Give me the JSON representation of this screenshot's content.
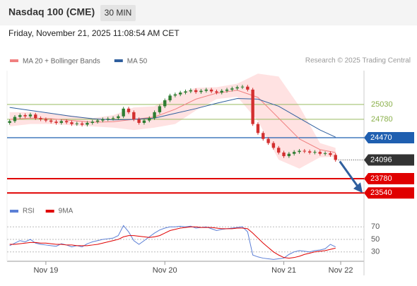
{
  "chart_data": [
    {
      "type": "candlestick",
      "title": "Nasdaq 100 (CME)",
      "timeframe": "30 MIN",
      "timestamp": "Friday, November 21, 2025 11:08:54 AM CET",
      "credit": "Research © 2025 Trading Central",
      "up_color": "#2e7d32",
      "down_color": "#d32f2f",
      "xlim": [
        -0.5,
        68.5
      ],
      "ylim": [
        23400,
        25600
      ],
      "open": [
        24720,
        24750,
        24820,
        24850,
        24830,
        24860,
        24800,
        24780,
        24760,
        24740,
        24720,
        24750,
        24730,
        24700,
        24710,
        24690,
        24720,
        24740,
        24760,
        24780,
        24790,
        24800,
        24830,
        24960,
        24900,
        24780,
        24720,
        24760,
        24800,
        24900,
        25000,
        25100,
        25180,
        25200,
        25230,
        25250,
        25270,
        25240,
        25260,
        25280,
        25250,
        25230,
        25260,
        25280,
        25300,
        25320,
        25330,
        25280,
        24700,
        24550,
        24450,
        24380,
        24300,
        24220,
        24160,
        24200,
        24230,
        24250,
        24240,
        24220,
        24230,
        24200,
        24210,
        24180
      ],
      "high": [
        24780,
        24850,
        24880,
        24880,
        24890,
        24890,
        24830,
        24810,
        24790,
        24770,
        24780,
        24780,
        24760,
        24740,
        24740,
        24750,
        24770,
        24790,
        24810,
        24820,
        24830,
        24860,
        24990,
        24990,
        24930,
        24810,
        24790,
        24830,
        24930,
        25030,
        25130,
        25210,
        25230,
        25260,
        25280,
        25300,
        25300,
        25290,
        25310,
        25310,
        25280,
        25290,
        25310,
        25330,
        25350,
        25360,
        25360,
        25310,
        24730,
        24580,
        24480,
        24410,
        24330,
        24250,
        24230,
        24260,
        24280,
        24280,
        24270,
        24260,
        24260,
        24240,
        24240,
        24210
      ],
      "low": [
        24690,
        24720,
        24790,
        24800,
        24800,
        24770,
        24750,
        24730,
        24710,
        24690,
        24690,
        24700,
        24670,
        24670,
        24660,
        24660,
        24690,
        24710,
        24730,
        24750,
        24760,
        24770,
        24800,
        24870,
        24750,
        24690,
        24690,
        24730,
        24770,
        24870,
        24970,
        25070,
        25150,
        25170,
        25200,
        25220,
        25210,
        25210,
        25230,
        25220,
        25200,
        25200,
        25230,
        25250,
        25270,
        25290,
        25250,
        24670,
        24520,
        24420,
        24350,
        24270,
        24190,
        24130,
        24130,
        24170,
        24200,
        24210,
        24190,
        24190,
        24170,
        24170,
        24150,
        24066
      ],
      "close": [
        24750,
        24820,
        24850,
        24830,
        24860,
        24800,
        24780,
        24760,
        24740,
        24720,
        24750,
        24730,
        24700,
        24710,
        24690,
        24720,
        24740,
        24760,
        24780,
        24790,
        24800,
        24830,
        24960,
        24900,
        24780,
        24720,
        24760,
        24800,
        24900,
        25000,
        25100,
        25180,
        25200,
        25230,
        25250,
        25270,
        25240,
        25260,
        25280,
        25250,
        25230,
        25260,
        25280,
        25300,
        25320,
        25330,
        25280,
        24700,
        24550,
        24450,
        24380,
        24300,
        24220,
        24160,
        24200,
        24230,
        24250,
        24240,
        24220,
        24230,
        24200,
        24210,
        24180,
        24096
      ],
      "series": [
        {
          "name": "MA 20 + Bollinger Bands",
          "color": "#f08080",
          "band_color": "#ffd6d6",
          "x": [
            0,
            4,
            8,
            12,
            16,
            20,
            24,
            28,
            32,
            36,
            40,
            44,
            48,
            52,
            56,
            60,
            63
          ],
          "values": [
            24780,
            24800,
            24790,
            24760,
            24730,
            24740,
            24780,
            24820,
            24950,
            25120,
            25220,
            25270,
            25150,
            24800,
            24450,
            24270,
            24220
          ],
          "upper": [
            24900,
            24900,
            24880,
            24840,
            24800,
            24850,
            24980,
            25000,
            25200,
            25310,
            25320,
            25380,
            25550,
            25500,
            25000,
            24380,
            24300
          ],
          "lower": [
            24660,
            24700,
            24700,
            24680,
            24660,
            24640,
            24600,
            24640,
            24700,
            24930,
            25120,
            25160,
            24750,
            24100,
            23950,
            24140,
            24150
          ]
        },
        {
          "name": "MA 50",
          "color": "#2f5f9e",
          "x": [
            0,
            4,
            8,
            12,
            16,
            20,
            24,
            28,
            32,
            36,
            40,
            44,
            48,
            52,
            56,
            60,
            63
          ],
          "values": [
            24980,
            24930,
            24880,
            24830,
            24790,
            24770,
            24780,
            24800,
            24880,
            24960,
            25050,
            25130,
            25120,
            25000,
            24800,
            24600,
            24480
          ]
        }
      ],
      "levels": [
        {
          "value": 25030,
          "color": "#8ab04a",
          "kind": "resistance"
        },
        {
          "value": 24780,
          "color": "#8ab04a",
          "kind": "resistance"
        },
        {
          "value": 24470,
          "color": "#1f5fb0",
          "kind": "pivot"
        },
        {
          "value": 23780,
          "color": "#e00000",
          "kind": "target"
        },
        {
          "value": 23540,
          "color": "#e00000",
          "kind": "target"
        }
      ],
      "last_price": 24096
    },
    {
      "type": "line",
      "xlim": [
        -0.5,
        68.5
      ],
      "ylim": [
        15,
        77
      ],
      "yticks": [
        70,
        50,
        30
      ],
      "grid": true,
      "xticks": [
        {
          "value": 7,
          "label": "Nov 19"
        },
        {
          "value": 30,
          "label": "Nov 20"
        },
        {
          "value": 53,
          "label": "Nov 21"
        },
        {
          "value": 64,
          "label": "Nov 22"
        }
      ],
      "series": [
        {
          "name": "RSI",
          "color": "#5b7fd6",
          "values": [
            40,
            44,
            48,
            46,
            50,
            44,
            42,
            41,
            40,
            39,
            43,
            41,
            38,
            40,
            38,
            43,
            46,
            48,
            50,
            51,
            52,
            56,
            72,
            62,
            48,
            42,
            48,
            54,
            60,
            65,
            68,
            70,
            70,
            71,
            70,
            71,
            68,
            69,
            70,
            67,
            64,
            66,
            67,
            68,
            69,
            70,
            62,
            25,
            22,
            20,
            19,
            18,
            19,
            20,
            26,
            30,
            32,
            31,
            30,
            32,
            33,
            35,
            42,
            38
          ]
        },
        {
          "name": "9MA",
          "color": "#e00000",
          "values": [
            42,
            42,
            43,
            44,
            45,
            45,
            44,
            44,
            43,
            42,
            42,
            41,
            41,
            40,
            40,
            40,
            41,
            42,
            44,
            46,
            48,
            50,
            54,
            56,
            56,
            55,
            54,
            53,
            54,
            56,
            60,
            64,
            66,
            68,
            69,
            70,
            70,
            69,
            69,
            69,
            68,
            67,
            67,
            67,
            68,
            68,
            67,
            60,
            52,
            44,
            37,
            30,
            25,
            21,
            20,
            21,
            23,
            26,
            28,
            30,
            31,
            32,
            34,
            36
          ]
        }
      ]
    }
  ]
}
